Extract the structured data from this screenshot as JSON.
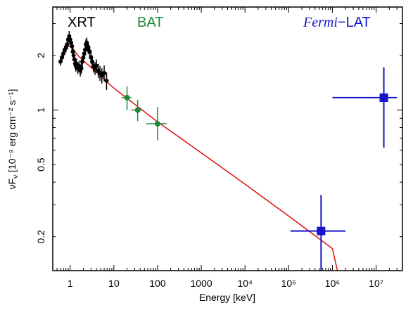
{
  "chart_data": {
    "type": "scatter",
    "xlabel": "Energy [keV]",
    "ylabel": "νF",
    "ylabel_sub": "ν",
    "ylabel_units": " [10⁻⁹ erg cm⁻² s⁻¹]",
    "xscale": "log",
    "yscale": "log",
    "xlim": [
      0.4,
      40000000
    ],
    "ylim": [
      0.13,
      3.7
    ],
    "grid": false,
    "legend_placement": "top",
    "x_ticks": [
      {
        "value": 1,
        "label": "1"
      },
      {
        "value": 10,
        "label": "10"
      },
      {
        "value": 100,
        "label": "100"
      },
      {
        "value": 1000,
        "label": "1000"
      },
      {
        "value": 10000,
        "label": "10⁴"
      },
      {
        "value": 100000,
        "label": "10⁵"
      },
      {
        "value": 1000000,
        "label": "10⁶"
      },
      {
        "value": 10000000,
        "label": "10⁷"
      }
    ],
    "y_ticks": [
      {
        "value": 0.2,
        "label": "0.2"
      },
      {
        "value": 0.5,
        "label": "0.5"
      },
      {
        "value": 1,
        "label": "1"
      },
      {
        "value": 2,
        "label": "2"
      }
    ],
    "legend": [
      {
        "label": "XRT",
        "color": "#000000"
      },
      {
        "label": "BAT",
        "color": "#1f8a3a"
      },
      {
        "label_italic": "Fermi",
        "label_rest": "−LAT",
        "color": "#1414c8"
      }
    ],
    "series": [
      {
        "name": "XRT",
        "color": "#000000",
        "marker": "circle",
        "points": [
          {
            "x": 0.6,
            "y": 1.85,
            "yerr_lo": 0.09,
            "yerr_hi": 0.09
          },
          {
            "x": 0.65,
            "y": 1.95,
            "yerr_lo": 0.1,
            "yerr_hi": 0.1
          },
          {
            "x": 0.7,
            "y": 2.05,
            "yerr_lo": 0.12,
            "yerr_hi": 0.12
          },
          {
            "x": 0.75,
            "y": 2.15,
            "yerr_lo": 0.12,
            "yerr_hi": 0.12
          },
          {
            "x": 0.8,
            "y": 2.2,
            "yerr_lo": 0.12,
            "yerr_hi": 0.12
          },
          {
            "x": 0.85,
            "y": 2.3,
            "yerr_lo": 0.14,
            "yerr_hi": 0.14
          },
          {
            "x": 0.9,
            "y": 2.45,
            "yerr_lo": 0.16,
            "yerr_hi": 0.16
          },
          {
            "x": 0.95,
            "y": 2.55,
            "yerr_lo": 0.18,
            "yerr_hi": 0.18
          },
          {
            "x": 1.0,
            "y": 2.45,
            "yerr_lo": 0.16,
            "yerr_hi": 0.16
          },
          {
            "x": 1.05,
            "y": 2.35,
            "yerr_lo": 0.15,
            "yerr_hi": 0.15
          },
          {
            "x": 1.1,
            "y": 2.25,
            "yerr_lo": 0.14,
            "yerr_hi": 0.14
          },
          {
            "x": 1.15,
            "y": 2.1,
            "yerr_lo": 0.13,
            "yerr_hi": 0.13
          },
          {
            "x": 1.2,
            "y": 2.0,
            "yerr_lo": 0.13,
            "yerr_hi": 0.13
          },
          {
            "x": 1.25,
            "y": 1.9,
            "yerr_lo": 0.12,
            "yerr_hi": 0.12
          },
          {
            "x": 1.3,
            "y": 1.8,
            "yerr_lo": 0.12,
            "yerr_hi": 0.12
          },
          {
            "x": 1.35,
            "y": 1.75,
            "yerr_lo": 0.12,
            "yerr_hi": 0.12
          },
          {
            "x": 1.4,
            "y": 1.8,
            "yerr_lo": 0.12,
            "yerr_hi": 0.12
          },
          {
            "x": 1.5,
            "y": 1.7,
            "yerr_lo": 0.12,
            "yerr_hi": 0.12
          },
          {
            "x": 1.6,
            "y": 1.75,
            "yerr_lo": 0.12,
            "yerr_hi": 0.12
          },
          {
            "x": 1.7,
            "y": 1.65,
            "yerr_lo": 0.12,
            "yerr_hi": 0.12
          },
          {
            "x": 1.8,
            "y": 1.7,
            "yerr_lo": 0.12,
            "yerr_hi": 0.12
          },
          {
            "x": 1.9,
            "y": 1.85,
            "yerr_lo": 0.12,
            "yerr_hi": 0.12
          },
          {
            "x": 2.0,
            "y": 1.95,
            "yerr_lo": 0.13,
            "yerr_hi": 0.13
          },
          {
            "x": 2.1,
            "y": 2.05,
            "yerr_lo": 0.14,
            "yerr_hi": 0.14
          },
          {
            "x": 2.2,
            "y": 2.15,
            "yerr_lo": 0.15,
            "yerr_hi": 0.15
          },
          {
            "x": 2.3,
            "y": 2.3,
            "yerr_lo": 0.16,
            "yerr_hi": 0.16
          },
          {
            "x": 2.4,
            "y": 2.35,
            "yerr_lo": 0.16,
            "yerr_hi": 0.16
          },
          {
            "x": 2.5,
            "y": 2.25,
            "yerr_lo": 0.16,
            "yerr_hi": 0.16
          },
          {
            "x": 2.6,
            "y": 2.2,
            "yerr_lo": 0.16,
            "yerr_hi": 0.16
          },
          {
            "x": 2.8,
            "y": 2.1,
            "yerr_lo": 0.16,
            "yerr_hi": 0.16
          },
          {
            "x": 3.0,
            "y": 1.95,
            "yerr_lo": 0.15,
            "yerr_hi": 0.15
          },
          {
            "x": 3.2,
            "y": 1.85,
            "yerr_lo": 0.15,
            "yerr_hi": 0.15
          },
          {
            "x": 3.4,
            "y": 1.75,
            "yerr_lo": 0.14,
            "yerr_hi": 0.14
          },
          {
            "x": 3.7,
            "y": 1.7,
            "yerr_lo": 0.14,
            "yerr_hi": 0.14
          },
          {
            "x": 4.0,
            "y": 1.75,
            "yerr_lo": 0.15,
            "yerr_hi": 0.15
          },
          {
            "x": 4.4,
            "y": 1.65,
            "yerr_lo": 0.15,
            "yerr_hi": 0.15
          },
          {
            "x": 4.8,
            "y": 1.6,
            "yerr_lo": 0.15,
            "yerr_hi": 0.15
          },
          {
            "x": 5.3,
            "y": 1.55,
            "yerr_lo": 0.15,
            "yerr_hi": 0.15
          },
          {
            "x": 6.0,
            "y": 1.6,
            "yerr_lo": 0.16,
            "yerr_hi": 0.16
          },
          {
            "x": 6.8,
            "y": 1.45,
            "yerr_lo": 0.16,
            "yerr_hi": 0.16
          }
        ]
      },
      {
        "name": "BAT",
        "color": "#1f8a3a",
        "marker": "circle",
        "points": [
          {
            "x": 20,
            "y": 1.17,
            "xerr_lo": 5,
            "xerr_hi": 5,
            "yerr_lo": 0.17,
            "yerr_hi": 0.18
          },
          {
            "x": 35,
            "y": 1.0,
            "xerr_lo": 10,
            "xerr_hi": 10,
            "yerr_lo": 0.13,
            "yerr_hi": 0.14
          },
          {
            "x": 100,
            "y": 0.84,
            "xerr_lo": 45,
            "xerr_hi": 60,
            "yerr_lo": 0.16,
            "yerr_hi": 0.2
          }
        ]
      },
      {
        "name": "Fermi−LAT",
        "color": "#1414c8",
        "marker": "square",
        "points": [
          {
            "x": 550000,
            "y": 0.215,
            "xerr_lo": 440000,
            "xerr_hi": 1450000,
            "yerr_lo": 0.085,
            "yerr_hi": 0.125
          },
          {
            "x": 15000000,
            "y": 1.17,
            "xerr_lo": 14000000,
            "xerr_hi": 15000000,
            "yerr_lo": 0.55,
            "yerr_hi": 0.55
          }
        ]
      }
    ],
    "model": {
      "color": "#e01010",
      "points": [
        {
          "x": 0.6,
          "y": 1.95
        },
        {
          "x": 0.7,
          "y": 2.08
        },
        {
          "x": 0.8,
          "y": 2.18
        },
        {
          "x": 0.9,
          "y": 2.24
        },
        {
          "x": 1.0,
          "y": 2.24
        },
        {
          "x": 1.2,
          "y": 2.16
        },
        {
          "x": 1.5,
          "y": 2.0
        },
        {
          "x": 2.0,
          "y": 1.87
        },
        {
          "x": 3.0,
          "y": 1.72
        },
        {
          "x": 5.0,
          "y": 1.54
        },
        {
          "x": 10,
          "y": 1.32
        },
        {
          "x": 20,
          "y": 1.16
        },
        {
          "x": 100,
          "y": 0.86
        },
        {
          "x": 1000,
          "y": 0.58
        },
        {
          "x": 10000,
          "y": 0.39
        },
        {
          "x": 100000,
          "y": 0.26
        },
        {
          "x": 1000000,
          "y": 0.172
        },
        {
          "x": 1300000,
          "y": 0.13
        }
      ]
    }
  }
}
